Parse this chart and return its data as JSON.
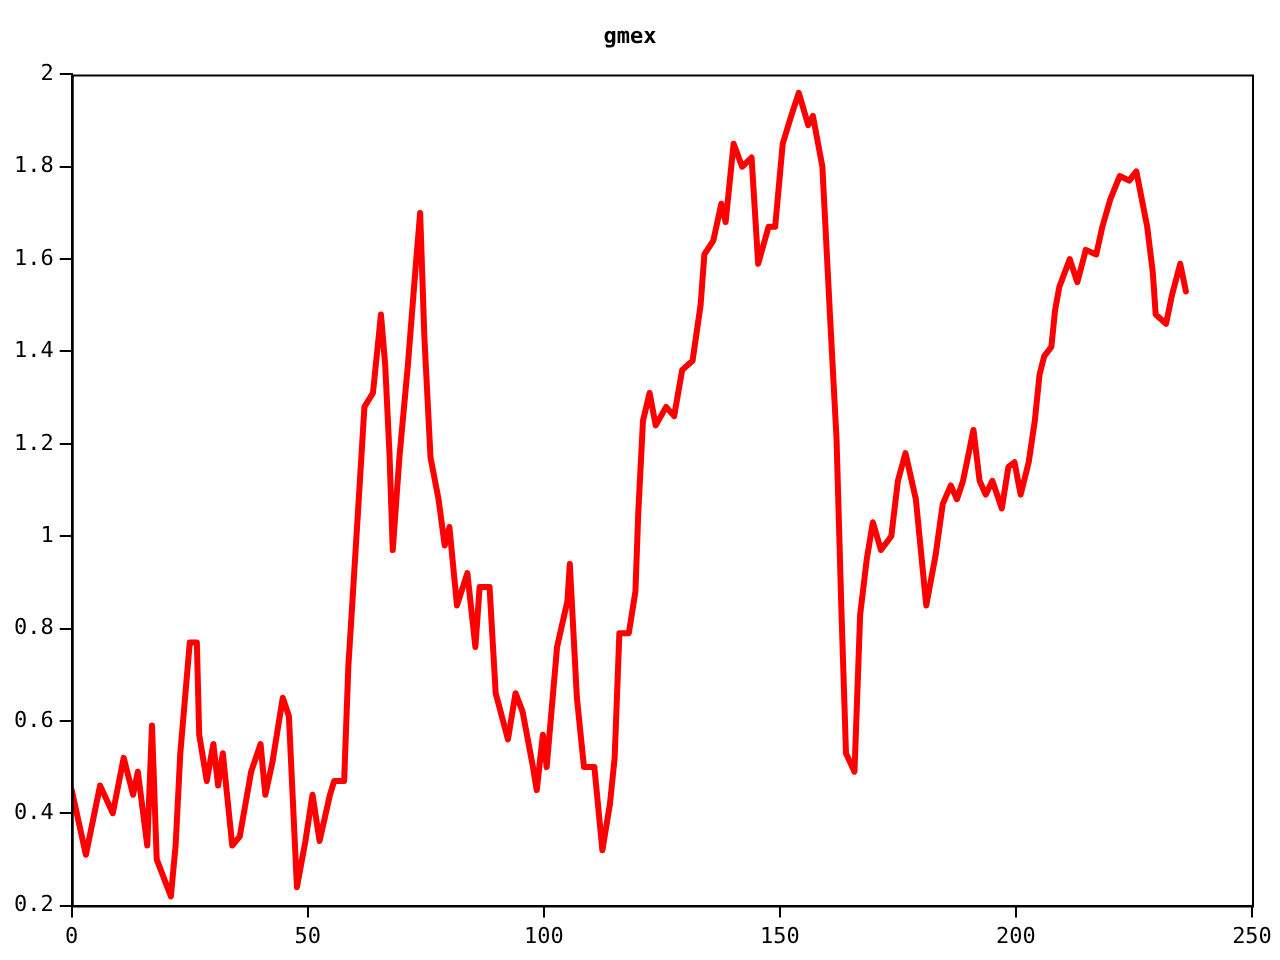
{
  "chart_data": {
    "type": "line",
    "title": "gmex",
    "x": [
      0,
      3,
      6,
      8.7,
      11,
      13,
      14,
      16,
      17,
      18,
      21,
      22,
      23,
      25,
      26.5,
      27,
      28.6,
      30,
      31,
      32,
      34,
      35.6,
      38,
      40,
      41,
      42.5,
      44.7,
      46,
      47.7,
      49.5,
      51,
      52.5,
      54.7,
      55.6,
      57.7,
      58.6,
      59.4,
      60.8,
      62,
      63.8,
      65.5,
      66.4,
      67.3,
      68,
      69.4,
      71.2,
      72.9,
      73.8,
      74.7,
      76,
      77.7,
      79,
      80,
      81.6,
      83.8,
      85.5,
      86.4,
      88.5,
      89.8,
      92.4,
      94,
      95.5,
      97.7,
      98.5,
      99.8,
      100.6,
      102.8,
      105,
      105.5,
      107,
      108.5,
      110.7,
      112.4,
      114,
      115,
      116,
      118,
      119.4,
      120,
      121,
      122.4,
      123.7,
      125.9,
      127.6,
      129.3,
      131.5,
      133.2,
      134,
      135.9,
      137.6,
      138.5,
      140.2,
      142,
      144,
      145.4,
      147.6,
      149,
      150.6,
      152.4,
      154,
      156,
      157,
      159,
      160.6,
      162,
      163,
      164,
      165.8,
      167,
      168.4,
      169.7,
      171.4,
      173.6,
      175,
      176.6,
      178.8,
      181,
      183,
      184.5,
      186.2,
      187.5,
      188.8,
      191,
      192.3,
      193.6,
      195,
      197,
      198.4,
      199.7,
      201,
      202.7,
      204,
      205,
      206,
      207.5,
      208.3,
      209.2,
      211.4,
      213,
      214.8,
      217,
      218.3,
      220,
      222,
      224,
      225.5,
      227.8,
      229,
      229.6,
      231.8,
      233,
      234.8,
      236
    ],
    "series": [
      {
        "color": "#ff0000",
        "values": [
          0.45,
          0.31,
          0.46,
          0.4,
          0.52,
          0.44,
          0.49,
          0.33,
          0.59,
          0.3,
          0.22,
          0.33,
          0.53,
          0.77,
          0.77,
          0.57,
          0.47,
          0.55,
          0.46,
          0.53,
          0.33,
          0.35,
          0.49,
          0.55,
          0.44,
          0.51,
          0.65,
          0.61,
          0.24,
          0.34,
          0.44,
          0.34,
          0.44,
          0.47,
          0.47,
          0.72,
          0.85,
          1.08,
          1.28,
          1.31,
          1.48,
          1.37,
          1.18,
          0.97,
          1.17,
          1.37,
          1.59,
          1.7,
          1.43,
          1.17,
          1.08,
          0.98,
          1.02,
          0.85,
          0.92,
          0.76,
          0.89,
          0.89,
          0.66,
          0.56,
          0.66,
          0.62,
          0.5,
          0.45,
          0.57,
          0.5,
          0.76,
          0.86,
          0.94,
          0.65,
          0.5,
          0.5,
          0.32,
          0.42,
          0.52,
          0.79,
          0.79,
          0.88,
          1.05,
          1.25,
          1.31,
          1.24,
          1.28,
          1.26,
          1.36,
          1.38,
          1.5,
          1.61,
          1.64,
          1.72,
          1.68,
          1.85,
          1.8,
          1.82,
          1.59,
          1.67,
          1.67,
          1.85,
          1.91,
          1.96,
          1.89,
          1.91,
          1.8,
          1.48,
          1.21,
          0.85,
          0.53,
          0.49,
          0.83,
          0.95,
          1.03,
          0.97,
          1.0,
          1.12,
          1.18,
          1.08,
          0.85,
          0.96,
          1.07,
          1.11,
          1.08,
          1.12,
          1.23,
          1.12,
          1.09,
          1.12,
          1.06,
          1.15,
          1.16,
          1.09,
          1.16,
          1.25,
          1.35,
          1.39,
          1.41,
          1.49,
          1.54,
          1.6,
          1.55,
          1.62,
          1.61,
          1.67,
          1.73,
          1.78,
          1.77,
          1.79,
          1.67,
          1.57,
          1.48,
          1.46,
          1.52,
          1.59,
          1.53
        ]
      }
    ],
    "xlim": [
      0,
      250
    ],
    "xticks": [
      0,
      50,
      100,
      150,
      200,
      250
    ],
    "ylim": [
      0.2,
      2
    ],
    "yticks": [
      0.2,
      0.4,
      0.6,
      0.8,
      1,
      1.2,
      1.4,
      1.6,
      1.8,
      2
    ],
    "grid": false,
    "legend": false,
    "marker": "none",
    "line_style": "solid"
  }
}
